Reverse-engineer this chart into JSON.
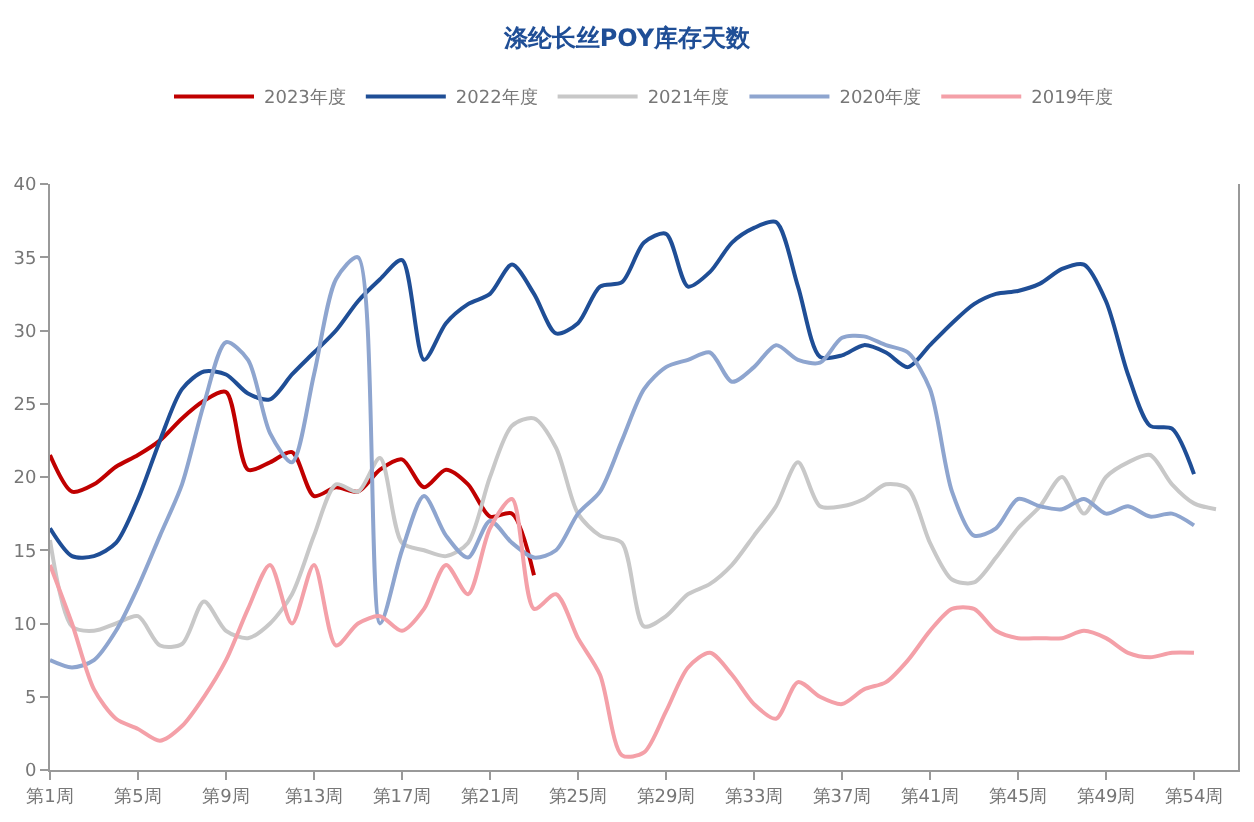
{
  "chart_data": {
    "type": "line",
    "title": "涤纶长丝POY库存天数",
    "categories": [
      "第1周",
      null,
      null,
      null,
      "第5周",
      null,
      null,
      null,
      "第9周",
      null,
      null,
      null,
      "第13周",
      null,
      null,
      null,
      "第17周",
      null,
      null,
      null,
      "第21周",
      null,
      null,
      null,
      "第25周",
      null,
      null,
      null,
      "第29周",
      null,
      null,
      null,
      "第33周",
      null,
      null,
      null,
      "第37周",
      null,
      null,
      null,
      "第41周",
      null,
      null,
      null,
      "第45周",
      null,
      null,
      null,
      "第49周",
      null,
      null,
      null,
      "第54周",
      null,
      null
    ],
    "series": [
      {
        "name": "2023年度",
        "color": "#c00000",
        "values": [
          21.5,
          19,
          19.5,
          20.7,
          21.5,
          22.5,
          24,
          25.2,
          25.8,
          20.5,
          21,
          21.7,
          18.7,
          19.3,
          19,
          20.5,
          21.2,
          19.3,
          20.5,
          19.5,
          17.3,
          17.5,
          13.3,
          null,
          null,
          null,
          null,
          null,
          null,
          null,
          null,
          null,
          null,
          null,
          null,
          null,
          null,
          null,
          null,
          null,
          null,
          null,
          null,
          null,
          null,
          null,
          null,
          null,
          null,
          null,
          null,
          null,
          null,
          null,
          null
        ]
      },
      {
        "name": "2022年度",
        "color": "#1f4e96",
        "values": [
          16.5,
          14.6,
          14.6,
          15.5,
          18.5,
          22.5,
          26,
          27.2,
          27,
          25.7,
          25.3,
          27,
          28.5,
          30,
          32,
          33.5,
          34.8,
          28,
          30.5,
          31.8,
          32.5,
          34.5,
          32.5,
          29.8,
          30.5,
          33,
          33.3,
          36,
          36.6,
          33,
          34,
          36,
          37,
          37.4,
          33,
          28.2,
          28.3,
          29,
          28.5,
          27.5,
          29,
          30.5,
          31.8,
          32.5,
          32.7,
          33.2,
          34.2,
          34.5,
          32,
          27,
          23.5,
          23.3,
          20.2,
          null,
          null
        ]
      },
      {
        "name": "2021年度",
        "color": "#c8c8c8",
        "values": [
          15.7,
          9.8,
          9.5,
          10,
          10.5,
          8.5,
          8.6,
          11.5,
          9.5,
          9,
          10,
          12,
          16,
          19.5,
          19,
          21.3,
          15.5,
          15,
          14.6,
          15.5,
          20,
          23.5,
          24,
          22,
          17.5,
          16,
          15.5,
          9.8,
          10.5,
          12,
          12.7,
          14,
          16,
          18,
          21,
          18,
          18,
          18.5,
          19.5,
          19.2,
          15.5,
          13,
          12.8,
          14.5,
          16.5,
          18,
          20,
          17.5,
          20,
          21,
          21.5,
          19.5,
          18.2,
          17.8,
          null
        ]
      },
      {
        "name": "2020年度",
        "color": "#8ea5cf",
        "values": [
          7.5,
          7,
          7.5,
          9.5,
          12.5,
          16,
          19.5,
          25,
          29.2,
          28,
          23,
          21,
          27,
          33.5,
          35,
          10,
          15,
          18.7,
          16,
          14.5,
          17,
          15.5,
          14.5,
          15,
          17.5,
          19,
          22.5,
          26,
          27.5,
          28,
          28.5,
          26.5,
          27.5,
          29,
          28,
          27.8,
          29.5,
          29.6,
          29,
          28.5,
          26,
          19,
          16,
          16.5,
          18.5,
          18,
          17.8,
          18.5,
          17.5,
          18,
          17.3,
          17.5,
          16.7,
          null,
          null
        ]
      },
      {
        "name": "2019年度",
        "color": "#f4a0a8",
        "values": [
          14,
          10,
          5.5,
          3.5,
          2.8,
          2,
          3,
          5,
          7.5,
          11,
          14,
          10,
          14,
          8.5,
          10,
          10.5,
          9.5,
          11,
          14,
          12,
          16.5,
          18.5,
          11,
          12,
          9,
          6.5,
          1,
          1.2,
          4,
          7,
          8,
          6.5,
          4.5,
          3.5,
          6,
          5,
          4.5,
          5.5,
          6,
          7.5,
          9.5,
          11,
          11,
          9.5,
          9,
          9,
          9,
          9.5,
          9,
          8,
          7.7,
          8,
          8,
          null,
          null
        ]
      }
    ],
    "ylim": [
      0,
      40
    ],
    "yticks": [
      0,
      5,
      10,
      15,
      20,
      25,
      30,
      35,
      40
    ],
    "legend": "top",
    "marker": "none",
    "line_style": "solid"
  }
}
